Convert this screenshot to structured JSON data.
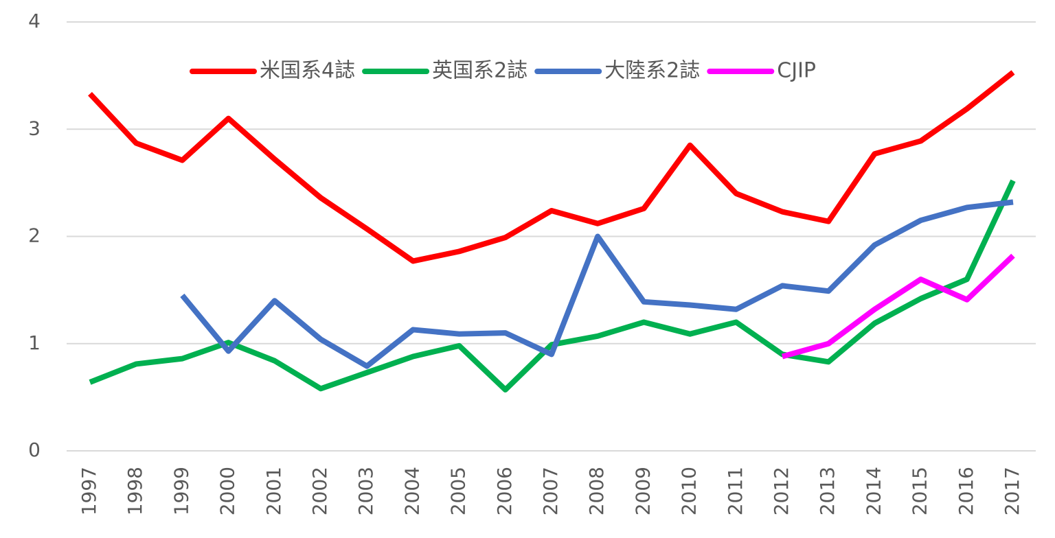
{
  "chart_data": {
    "type": "line",
    "categories": [
      "1997",
      "1998",
      "1999",
      "2000",
      "2001",
      "2002",
      "2003",
      "2004",
      "2005",
      "2006",
      "2007",
      "2008",
      "2009",
      "2010",
      "2011",
      "2012",
      "2013",
      "2014",
      "2015",
      "2016",
      "2017"
    ],
    "series": [
      {
        "name": "米国系4誌",
        "color": "#ff0000",
        "values": [
          3.33,
          2.87,
          2.71,
          3.1,
          2.72,
          2.36,
          2.07,
          1.77,
          1.86,
          1.99,
          2.24,
          2.12,
          2.26,
          2.85,
          2.4,
          2.23,
          2.14,
          2.77,
          2.89,
          3.19,
          3.53
        ]
      },
      {
        "name": "英国系2誌",
        "color": "#00b050",
        "values": [
          0.64,
          0.81,
          0.86,
          1.01,
          0.84,
          0.58,
          0.73,
          0.88,
          0.98,
          0.57,
          0.99,
          1.07,
          1.2,
          1.09,
          1.2,
          0.9,
          0.83,
          1.19,
          1.42,
          1.6,
          2.52
        ]
      },
      {
        "name": "大陸系2誌",
        "color": "#4472c4",
        "values": [
          null,
          null,
          1.45,
          0.93,
          1.4,
          1.04,
          0.79,
          1.13,
          1.09,
          1.1,
          0.9,
          2.0,
          1.39,
          1.36,
          1.32,
          1.54,
          1.49,
          1.92,
          2.15,
          2.27,
          2.32
        ]
      },
      {
        "name": "CJIP",
        "color": "#ff00ff",
        "values": [
          null,
          null,
          null,
          null,
          null,
          null,
          null,
          null,
          null,
          null,
          null,
          null,
          null,
          null,
          null,
          0.88,
          1.0,
          1.32,
          1.6,
          1.41,
          1.82
        ]
      }
    ],
    "ylim": [
      0,
      4
    ],
    "yticks": [
      0,
      1,
      2,
      3,
      4
    ],
    "grid": true
  }
}
